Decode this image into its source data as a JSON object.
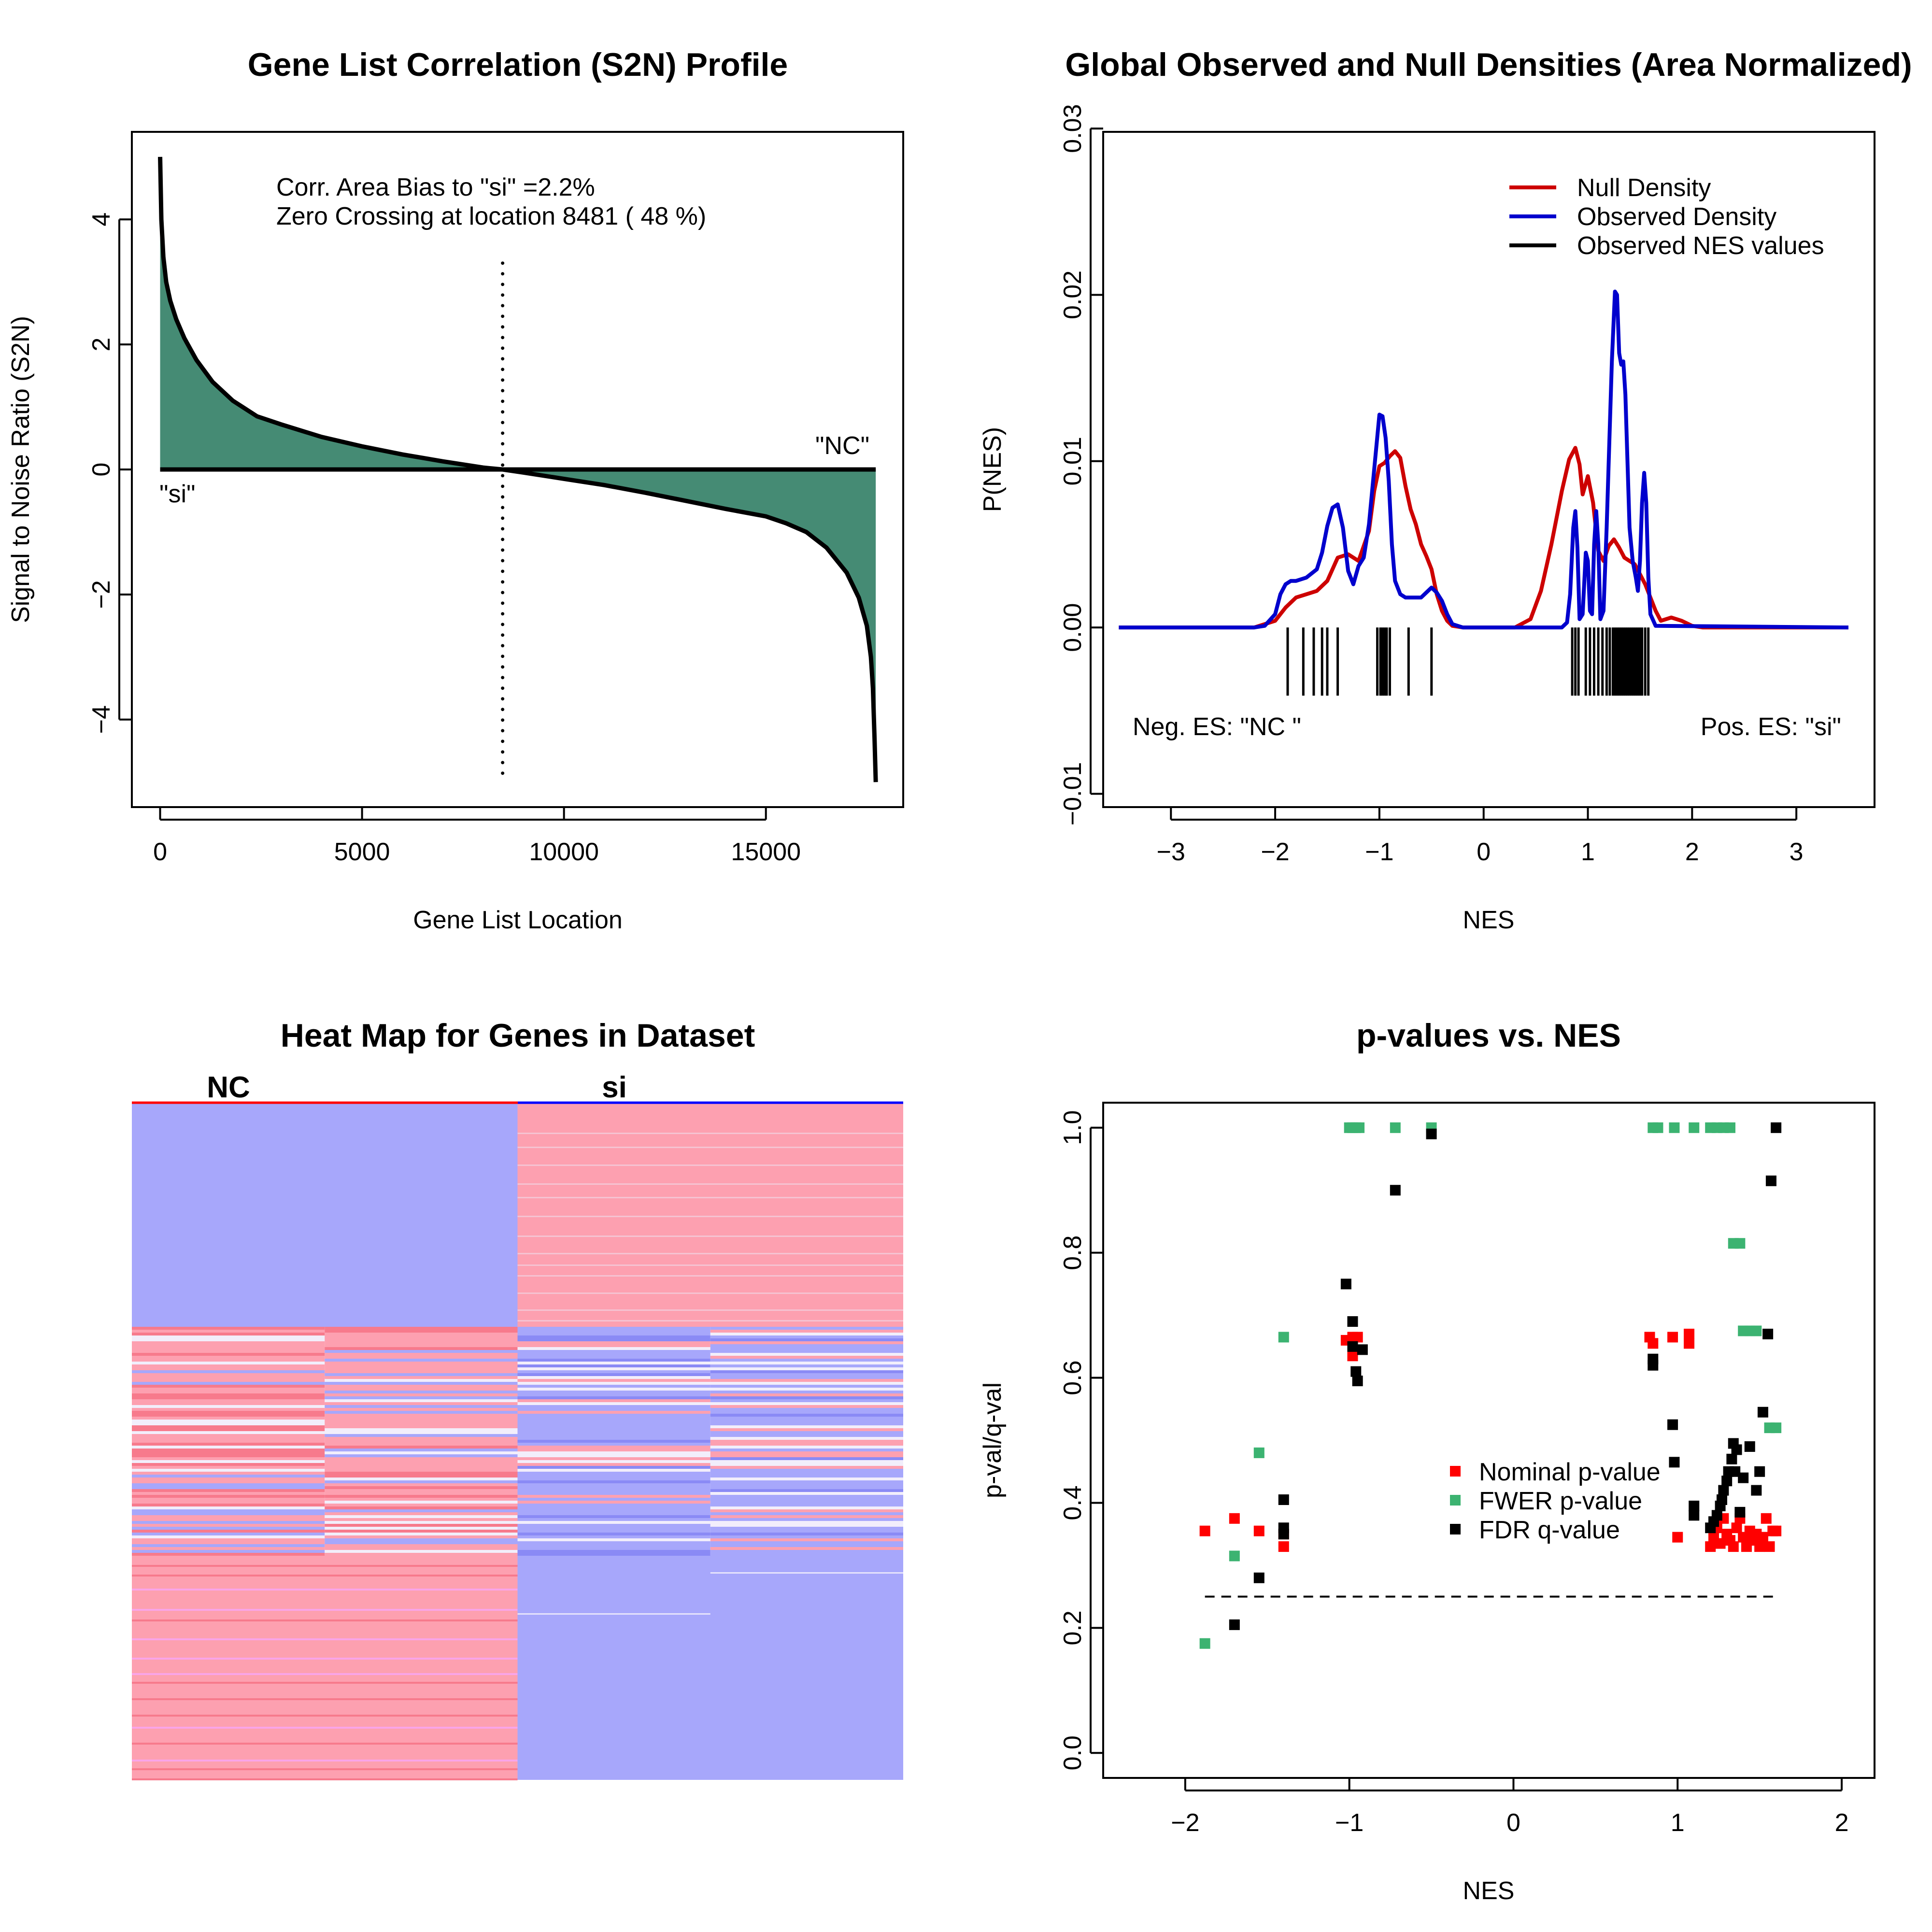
{
  "chart_data": [
    {
      "type": "area",
      "title": "Gene List Correlation (S2N) Profile",
      "xlabel": "Gene List Location",
      "ylabel": "Signal to Noise Ratio (S2N)",
      "xlim": [
        -700,
        18400
      ],
      "ylim": [
        -5.4,
        5.4
      ],
      "xticks": [
        0,
        5000,
        10000,
        15000
      ],
      "xtick_labels": [
        "0",
        "5000",
        "10000",
        "15000"
      ],
      "yticks": [
        -4,
        -2,
        0,
        2,
        4
      ],
      "ytick_labels": [
        "−4",
        "−2",
        "0",
        "2",
        "4"
      ],
      "fill_color": "#458b74",
      "zero_crossing": 8481,
      "annotations": [
        "Corr. Area Bias to \"si\" =2.2%",
        "Zero Crossing at location  8481  ( 48  %)"
      ],
      "label_left": "\"si\"",
      "label_right": "\"NC\"",
      "curve": {
        "x": [
          0,
          30,
          80,
          150,
          250,
          400,
          600,
          900,
          1300,
          1800,
          2400,
          3000,
          4000,
          5000,
          6000,
          7000,
          8000,
          8481,
          9000,
          10000,
          11000,
          12000,
          13000,
          14000,
          15000,
          15500,
          16000,
          16500,
          17000,
          17300,
          17500,
          17600,
          17650,
          17690,
          17720
        ],
        "y": [
          5.0,
          4.0,
          3.4,
          3.0,
          2.7,
          2.4,
          2.1,
          1.75,
          1.4,
          1.1,
          0.85,
          0.72,
          0.52,
          0.37,
          0.24,
          0.13,
          0.03,
          0.0,
          -0.05,
          -0.15,
          -0.25,
          -0.37,
          -0.5,
          -0.63,
          -0.75,
          -0.86,
          -1.0,
          -1.25,
          -1.65,
          -2.05,
          -2.5,
          -3.0,
          -3.5,
          -4.3,
          -5.0
        ]
      }
    },
    {
      "type": "line",
      "title": "Global Observed and Null Densities (Area Normalized)",
      "xlabel": "NES",
      "ylabel": "P(NES)",
      "xlim": [
        -3.65,
        3.75
      ],
      "ylim": [
        -0.0108,
        0.0298
      ],
      "xticks": [
        -3,
        -2,
        -1,
        0,
        1,
        2,
        3
      ],
      "xtick_labels": [
        "−3",
        "−2",
        "−1",
        "0",
        "1",
        "2",
        "3"
      ],
      "yticks": [
        -0.01,
        0.0,
        0.01,
        0.02,
        0.03
      ],
      "ytick_labels": [
        "−0.01",
        "0.00",
        "0.01",
        "0.02",
        "0.03"
      ],
      "legend_position": "top-right",
      "legend": [
        {
          "name": "Null Density",
          "color": "#cd0000"
        },
        {
          "name": "Observed Density",
          "color": "#0000cd"
        },
        {
          "name": "Observed NES values",
          "color": "#000000"
        }
      ],
      "label_left": "Neg. ES: \"NC \"",
      "label_right": "Pos. ES: \"si\"",
      "series": [
        {
          "name": "Null Density",
          "color": "#cd0000",
          "x": [
            -3.5,
            -2.2,
            -2.0,
            -1.9,
            -1.8,
            -1.7,
            -1.6,
            -1.5,
            -1.4,
            -1.3,
            -1.2,
            -1.1,
            -1.05,
            -1.0,
            -0.95,
            -0.9,
            -0.85,
            -0.8,
            -0.75,
            -0.7,
            -0.65,
            -0.6,
            -0.55,
            -0.5,
            -0.45,
            -0.4,
            -0.35,
            -0.3,
            -0.2,
            0.3,
            0.45,
            0.55,
            0.65,
            0.75,
            0.82,
            0.88,
            0.92,
            0.95,
            1.0,
            1.05,
            1.1,
            1.15,
            1.2,
            1.25,
            1.3,
            1.35,
            1.4,
            1.45,
            1.5,
            1.55,
            1.6,
            1.65,
            1.7,
            1.8,
            1.9,
            2.0,
            2.1,
            3.5
          ],
          "y": [
            0,
            0,
            0.0004,
            0.0012,
            0.0018,
            0.002,
            0.0022,
            0.0028,
            0.0042,
            0.0044,
            0.004,
            0.0058,
            0.0082,
            0.0097,
            0.0099,
            0.0103,
            0.0106,
            0.0102,
            0.0085,
            0.0071,
            0.0062,
            0.005,
            0.0043,
            0.0035,
            0.002,
            0.001,
            0.0004,
            0.0001,
            0,
            0,
            0.0005,
            0.0022,
            0.005,
            0.0082,
            0.0101,
            0.0108,
            0.0098,
            0.008,
            0.0091,
            0.0075,
            0.0046,
            0.004,
            0.0049,
            0.0053,
            0.0048,
            0.0042,
            0.004,
            0.0038,
            0.0032,
            0.0026,
            0.0018,
            0.001,
            0.0004,
            0.0006,
            0.0004,
            0.0001,
            0,
            0
          ]
        },
        {
          "name": "Observed Density",
          "color": "#0000cd",
          "x": [
            -3.5,
            -2.2,
            -2.1,
            -2.0,
            -1.95,
            -1.9,
            -1.85,
            -1.8,
            -1.7,
            -1.6,
            -1.55,
            -1.5,
            -1.45,
            -1.4,
            -1.35,
            -1.3,
            -1.25,
            -1.2,
            -1.15,
            -1.1,
            -1.05,
            -1.0,
            -0.97,
            -0.94,
            -0.91,
            -0.88,
            -0.85,
            -0.8,
            -0.75,
            -0.7,
            -0.65,
            -0.6,
            -0.55,
            -0.5,
            -0.45,
            -0.4,
            -0.35,
            -0.3,
            -0.25,
            -0.2,
            0.75,
            0.8,
            0.83,
            0.86,
            0.88,
            0.9,
            0.92,
            0.95,
            0.98,
            1.0,
            1.02,
            1.04,
            1.06,
            1.08,
            1.1,
            1.12,
            1.15,
            1.18,
            1.2,
            1.23,
            1.26,
            1.28,
            1.3,
            1.32,
            1.34,
            1.36,
            1.38,
            1.4,
            1.43,
            1.46,
            1.48,
            1.5,
            1.52,
            1.54,
            1.56,
            1.58,
            1.6,
            1.65,
            3.5
          ],
          "y": [
            0,
            0,
            0.0001,
            0.0008,
            0.002,
            0.0026,
            0.0028,
            0.0028,
            0.003,
            0.0035,
            0.0045,
            0.0061,
            0.0072,
            0.0074,
            0.006,
            0.0034,
            0.0026,
            0.0037,
            0.0042,
            0.0062,
            0.0095,
            0.0128,
            0.0127,
            0.0114,
            0.0088,
            0.005,
            0.0028,
            0.002,
            0.0018,
            0.0018,
            0.0018,
            0.0018,
            0.0021,
            0.0024,
            0.0021,
            0.0016,
            0.0008,
            0.0002,
            0.0001,
            0,
            0,
            0.0003,
            0.002,
            0.006,
            0.007,
            0.0048,
            0.0005,
            0.0008,
            0.0045,
            0.004,
            0.001,
            0.0008,
            0.005,
            0.007,
            0.005,
            0.0005,
            0.001,
            0.006,
            0.01,
            0.016,
            0.0202,
            0.02,
            0.0165,
            0.0158,
            0.016,
            0.014,
            0.01,
            0.006,
            0.004,
            0.003,
            0.0022,
            0.004,
            0.0075,
            0.0093,
            0.0075,
            0.003,
            0.0008,
            0.0001,
            0
          ]
        }
      ],
      "rug": [
        -1.88,
        -1.73,
        -1.63,
        -1.55,
        -1.5,
        -1.4,
        -1.02,
        -0.99,
        -0.97,
        -0.95,
        -0.93,
        -0.9,
        -0.72,
        -0.5,
        0.85,
        0.88,
        0.91,
        0.98,
        1.02,
        1.06,
        1.1,
        1.14,
        1.18,
        1.21,
        1.24,
        1.26,
        1.28,
        1.3,
        1.32,
        1.34,
        1.36,
        1.38,
        1.4,
        1.42,
        1.44,
        1.46,
        1.48,
        1.5,
        1.52,
        1.55,
        1.58
      ]
    },
    {
      "type": "heatmap",
      "title": "Heat Map for Genes in Dataset",
      "column_groups": [
        {
          "name": "NC",
          "color": "#ff0000"
        },
        {
          "name": "si",
          "color": "#0000ff"
        }
      ],
      "columns": 4,
      "colors": {
        "blue": "#a7a7fb",
        "red": "#fda0b0",
        "pale": "#f2eefb",
        "deep_red": "#f77a8c",
        "pink": "#f9a5e8"
      }
    },
    {
      "type": "scatter",
      "title": "p-values vs. NES",
      "xlabel": "NES",
      "ylabel": "p-val/q-val",
      "xlim": [
        -2.5,
        2.2
      ],
      "ylim": [
        -0.04,
        1.04
      ],
      "xticks": [
        -2,
        -1,
        0,
        1,
        2
      ],
      "xtick_labels": [
        "−2",
        "−1",
        "0",
        "1",
        "2"
      ],
      "yticks": [
        0.0,
        0.2,
        0.4,
        0.6,
        0.8,
        1.0
      ],
      "ytick_labels": [
        "0.0",
        "0.2",
        "0.4",
        "0.6",
        "0.8",
        "1.0"
      ],
      "legend_position": "center-right",
      "threshold": 0.25,
      "series": [
        {
          "name": "Nominal p-value",
          "color": "#ff0000",
          "points": [
            [
              -1.88,
              0.355
            ],
            [
              -1.7,
              0.375
            ],
            [
              -1.55,
              0.355
            ],
            [
              -1.4,
              0.33
            ],
            [
              -1.4,
              0.35
            ],
            [
              -1.02,
              0.66
            ],
            [
              -0.98,
              0.665
            ],
            [
              -0.98,
              0.635
            ],
            [
              -0.95,
              0.665
            ],
            [
              0.83,
              0.665
            ],
            [
              0.85,
              0.655
            ],
            [
              0.97,
              0.665
            ],
            [
              1.07,
              0.67
            ],
            [
              1.07,
              0.655
            ],
            [
              1.0,
              0.345
            ],
            [
              1.2,
              0.33
            ],
            [
              1.22,
              0.345
            ],
            [
              1.24,
              0.36
            ],
            [
              1.26,
              0.335
            ],
            [
              1.28,
              0.375
            ],
            [
              1.3,
              0.35
            ],
            [
              1.32,
              0.34
            ],
            [
              1.34,
              0.33
            ],
            [
              1.36,
              0.36
            ],
            [
              1.38,
              0.375
            ],
            [
              1.4,
              0.345
            ],
            [
              1.42,
              0.33
            ],
            [
              1.44,
              0.355
            ],
            [
              1.46,
              0.34
            ],
            [
              1.48,
              0.35
            ],
            [
              1.5,
              0.33
            ],
            [
              1.52,
              0.345
            ],
            [
              1.54,
              0.375
            ],
            [
              1.56,
              0.33
            ],
            [
              1.58,
              0.355
            ],
            [
              1.6,
              0.355
            ]
          ]
        },
        {
          "name": "FWER p-value",
          "color": "#3cb371",
          "points": [
            [
              -1.88,
              0.175
            ],
            [
              -1.7,
              0.315
            ],
            [
              -1.55,
              0.48
            ],
            [
              -1.4,
              0.665
            ],
            [
              -1.0,
              1.0
            ],
            [
              -0.98,
              1.0
            ],
            [
              -0.96,
              1.0
            ],
            [
              -0.94,
              1.0
            ],
            [
              -0.72,
              1.0
            ],
            [
              -0.5,
              1.0
            ],
            [
              0.85,
              1.0
            ],
            [
              0.88,
              1.0
            ],
            [
              0.98,
              1.0
            ],
            [
              1.1,
              1.0
            ],
            [
              1.2,
              1.0
            ],
            [
              1.24,
              1.0
            ],
            [
              1.28,
              1.0
            ],
            [
              1.32,
              1.0
            ],
            [
              1.34,
              0.815
            ],
            [
              1.38,
              0.815
            ],
            [
              1.4,
              0.675
            ],
            [
              1.44,
              0.675
            ],
            [
              1.48,
              0.675
            ],
            [
              1.56,
              0.52
            ],
            [
              1.6,
              0.52
            ]
          ]
        },
        {
          "name": "FDR q-value",
          "color": "#000000",
          "points": [
            [
              -1.7,
              0.205
            ],
            [
              -1.55,
              0.28
            ],
            [
              -1.4,
              0.405
            ],
            [
              -1.4,
              0.36
            ],
            [
              -1.4,
              0.35
            ],
            [
              -1.02,
              0.75
            ],
            [
              -0.98,
              0.69
            ],
            [
              -0.98,
              0.65
            ],
            [
              -0.96,
              0.61
            ],
            [
              -0.95,
              0.595
            ],
            [
              -0.92,
              0.645
            ],
            [
              -0.72,
              0.9
            ],
            [
              -0.5,
              0.99
            ],
            [
              0.85,
              0.63
            ],
            [
              0.85,
              0.62
            ],
            [
              0.97,
              0.525
            ],
            [
              0.98,
              0.465
            ],
            [
              1.1,
              0.395
            ],
            [
              1.1,
              0.38
            ],
            [
              1.2,
              0.36
            ],
            [
              1.22,
              0.37
            ],
            [
              1.24,
              0.38
            ],
            [
              1.26,
              0.395
            ],
            [
              1.27,
              0.405
            ],
            [
              1.28,
              0.42
            ],
            [
              1.3,
              0.435
            ],
            [
              1.31,
              0.45
            ],
            [
              1.33,
              0.47
            ],
            [
              1.34,
              0.495
            ],
            [
              1.35,
              0.45
            ],
            [
              1.36,
              0.485
            ],
            [
              1.38,
              0.385
            ],
            [
              1.4,
              0.44
            ],
            [
              1.44,
              0.49
            ],
            [
              1.48,
              0.42
            ],
            [
              1.5,
              0.45
            ],
            [
              1.52,
              0.545
            ],
            [
              1.55,
              0.67
            ],
            [
              1.57,
              0.915
            ],
            [
              1.6,
              1.0
            ]
          ]
        }
      ]
    }
  ]
}
